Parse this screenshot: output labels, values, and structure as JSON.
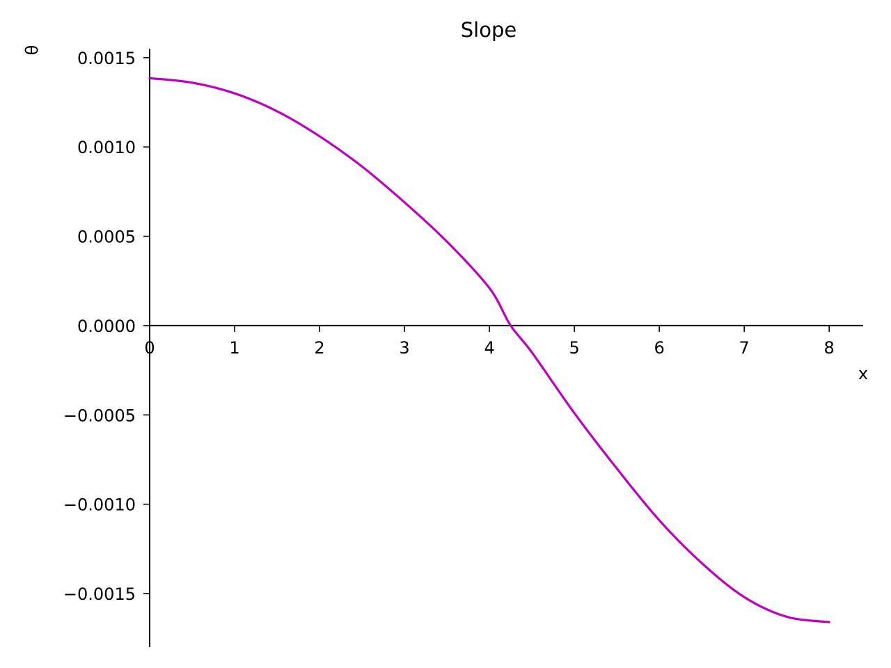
{
  "chart_data": {
    "type": "line",
    "title": "Slope",
    "xlabel": "x",
    "ylabel": "θ",
    "xlim": [
      0,
      8.4
    ],
    "ylim": [
      -0.0018,
      0.00155
    ],
    "x_ticks": [
      0,
      1,
      2,
      3,
      4,
      5,
      6,
      7,
      8
    ],
    "x_tick_labels": [
      "0",
      "1",
      "2",
      "3",
      "4",
      "5",
      "6",
      "7",
      "8"
    ],
    "y_ticks": [
      0.0015,
      0.001,
      0.0005,
      0.0,
      -0.0005,
      -0.001,
      -0.0015
    ],
    "y_tick_labels": [
      "0.0015",
      "0.0010",
      "0.0005",
      "0.0000",
      "−0.0005",
      "−0.0010",
      "−0.0015"
    ],
    "grid": false,
    "legend": "none",
    "series": [
      {
        "color": "#bf00bf",
        "x": [
          0,
          0.5,
          1,
          1.5,
          2,
          2.5,
          3,
          3.5,
          4,
          4.25,
          4.5,
          5,
          5.5,
          6,
          6.5,
          7,
          7.5,
          8
        ],
        "y": [
          0.001385,
          0.00136,
          0.0013,
          0.0012,
          0.00106,
          0.00089,
          0.00069,
          0.00047,
          0.00021,
          0.0,
          -0.00015,
          -0.00049,
          -0.0008,
          -0.00109,
          -0.00133,
          -0.00152,
          -0.00163,
          -0.00166
        ]
      }
    ]
  }
}
